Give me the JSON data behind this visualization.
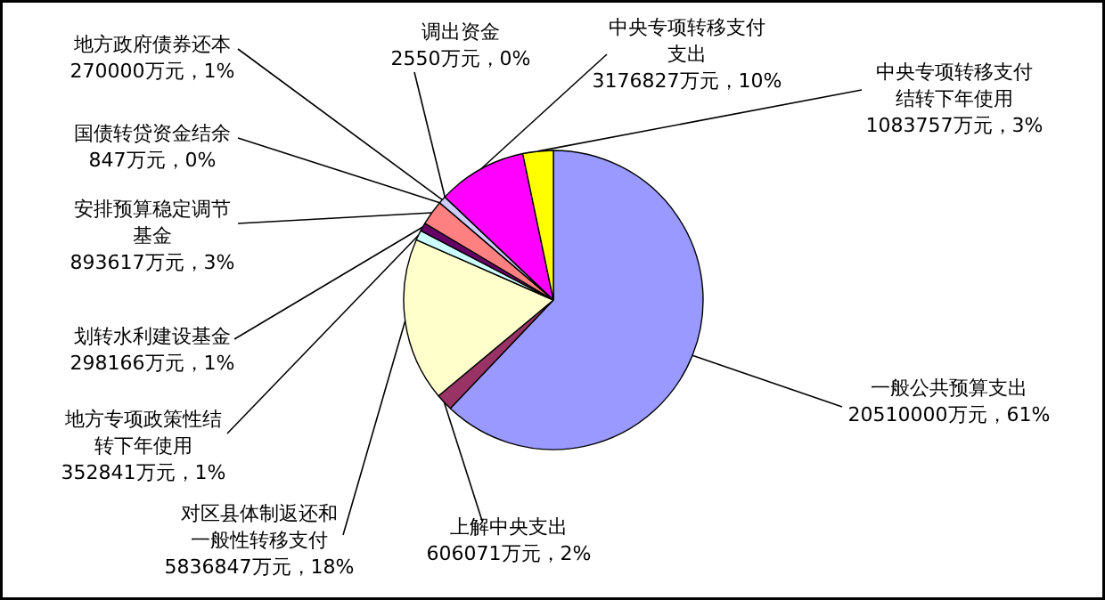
{
  "chart_data": {
    "type": "pie",
    "categories": [
      "一般公共预算支出",
      "上解中央支出",
      "对区县体制返还和一般性转移支付",
      "地方专项政策性结转下年使用",
      "划转水利建设基金",
      "安排预算稳定调节基金",
      "国债转贷资金结余",
      "地方政府债券还本",
      "调出资金",
      "中央专项转移支付支出",
      "中央专项转移支付结转下年使用"
    ],
    "values": [
      20510000,
      606071,
      5836847,
      352841,
      298166,
      893617,
      847,
      270000,
      2550,
      3176827,
      1083757
    ],
    "value_labels": [
      "20510000万元，61%",
      "606071万元，2%",
      "5836847万元，18%",
      "352841万元，1%",
      "298166万元，1%",
      "893617万元，3%",
      "847万元，0%",
      "270000万元，1%",
      "2550万元，0%",
      "3176827万元，10%",
      "1083757万元，3%"
    ],
    "colors": [
      "#9999ff",
      "#993366",
      "#ffffcc",
      "#ccffff",
      "#660066",
      "#ff8080",
      "#0066cc",
      "#ccccff",
      "#000080",
      "#ff00ff",
      "#ffff00"
    ]
  }
}
